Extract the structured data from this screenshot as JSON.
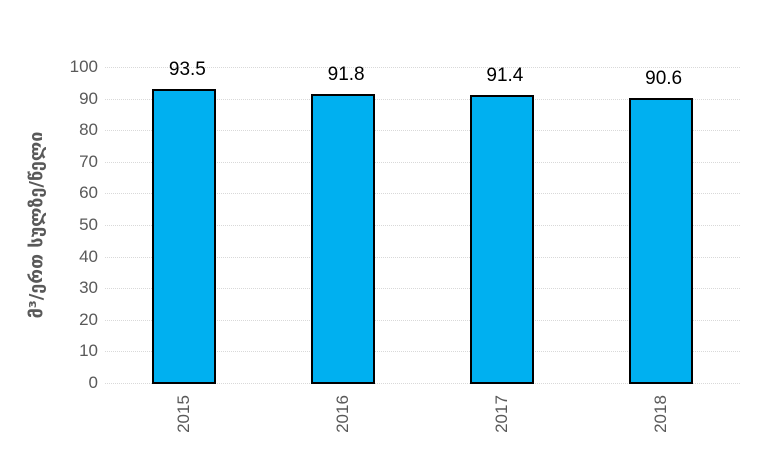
{
  "chart_data": {
    "type": "bar",
    "categories": [
      "2015",
      "2016",
      "2017",
      "2018"
    ],
    "values": [
      93.5,
      91.8,
      91.4,
      90.6
    ],
    "data_labels": [
      "93.5",
      "91.8",
      "91.4",
      "90.6"
    ],
    "title": "",
    "xlabel": "",
    "ylabel": "მ³/ერთ სულზე/წელი",
    "ylim": [
      0,
      100
    ],
    "yticks": [
      0,
      10,
      20,
      30,
      40,
      50,
      60,
      70,
      80,
      90,
      100
    ],
    "grid": "horizontal-dotted",
    "legend": "none",
    "bar_label_rotation": "x labels rotated 90deg reading bottom-to-top",
    "colors": {
      "bar_fill": "#00B0F0",
      "bar_border": "#000000",
      "gridline": "#D9D9D9",
      "tick_text": "#595959",
      "data_label_text": "#000000",
      "background": "#FFFFFF"
    }
  }
}
